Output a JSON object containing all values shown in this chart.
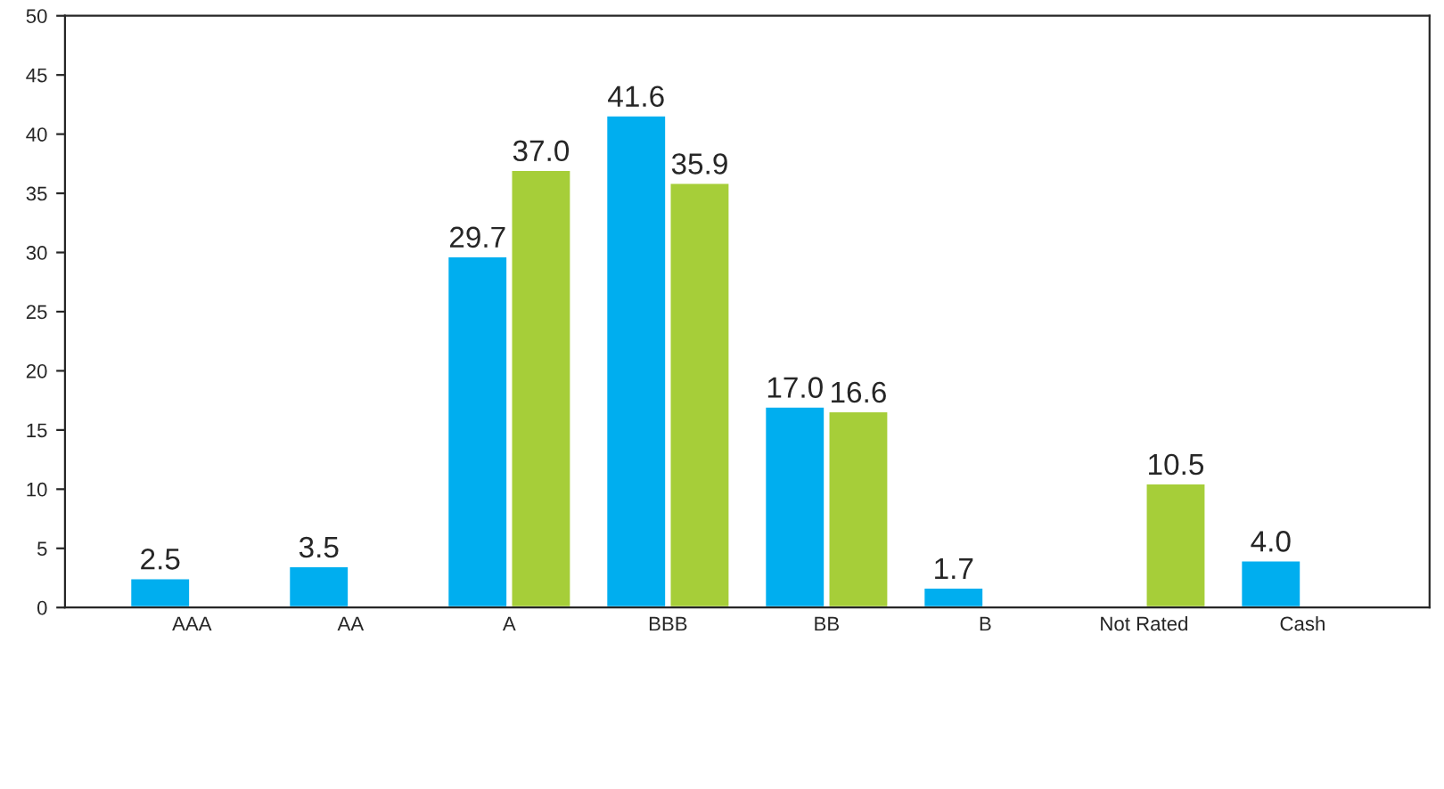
{
  "chart_data": {
    "type": "bar",
    "categories": [
      "AAA",
      "AA",
      "A",
      "BBB",
      "BB",
      "B",
      "Not Rated",
      "Cash"
    ],
    "series": [
      {
        "color": "#00aeef",
        "values": [
          2.5,
          3.5,
          29.7,
          41.6,
          17.0,
          1.7,
          null,
          4.0
        ],
        "value_labels": [
          "2.5",
          "3.5",
          "29.7",
          "41.6",
          "17.0",
          "1.7",
          null,
          "4.0"
        ]
      },
      {
        "color": "#a6ce39",
        "values": [
          null,
          null,
          37.0,
          35.9,
          16.6,
          null,
          10.5,
          null
        ],
        "value_labels": [
          null,
          null,
          "37.0",
          "35.9",
          "16.6",
          null,
          "10.5",
          null
        ]
      }
    ],
    "ylim": [
      0,
      50
    ],
    "yticks": [
      0,
      5,
      10,
      15,
      20,
      25,
      30,
      35,
      40,
      45,
      50
    ],
    "grid": false
  }
}
